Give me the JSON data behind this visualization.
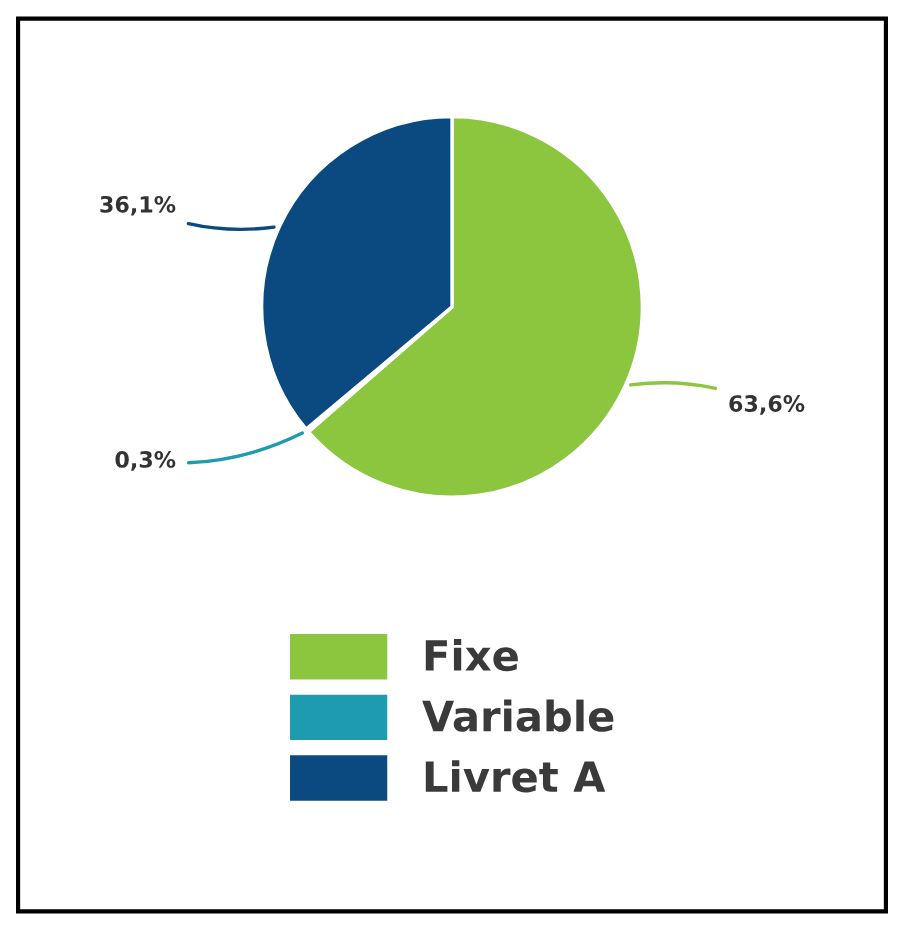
{
  "chart_data": {
    "type": "pie",
    "categories": [
      "Fixe",
      "Variable",
      "Livret A"
    ],
    "values": [
      63.6,
      0.3,
      36.1
    ],
    "colors": [
      "#8cc63f",
      "#1f9bb0",
      "#0b4a80"
    ],
    "value_labels": [
      "63,6%",
      "0,3%",
      "36,1%"
    ],
    "legend": "bottom"
  }
}
